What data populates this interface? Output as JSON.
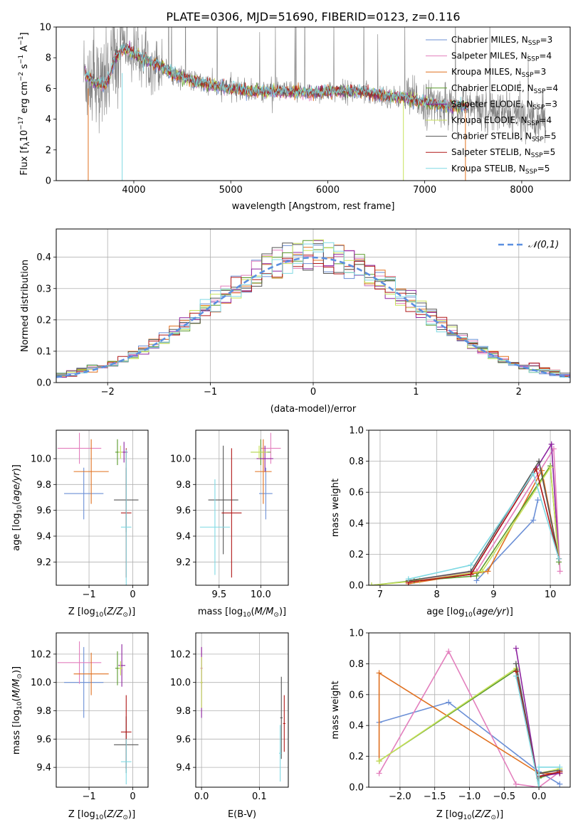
{
  "figure": {
    "title": "PLATE=0306, MJD=51690, FIBERID=0123, z=0.116"
  },
  "colors": {
    "Chabrier MILES": "#6b8fd6",
    "Salpeter MILES": "#e37fbd",
    "Kroupa MILES": "#e0701f",
    "Chabrier ELODIE": "#5a9a2c",
    "Salpeter ELODIE": "#8e24a0",
    "Kroupa ELODIE": "#c8e25a",
    "Chabrier STELIB": "#555555",
    "Salpeter STELIB": "#b01818",
    "Kroupa STELIB": "#7fd9e3",
    "data": "#808080",
    "normal": "#5b8fe0"
  },
  "chart_data": [
    {
      "id": "spectrum",
      "type": "line",
      "xlabel": "wavelength [Angstrom, rest frame]",
      "ylabel": "Flux [fλ10⁻¹⁷ erg cm⁻² s⁻¹ A⁻¹]",
      "xlim": [
        3200,
        8500
      ],
      "ylim": [
        0,
        10
      ],
      "xticks": [
        4000,
        5000,
        6000,
        7000,
        8000
      ],
      "yticks": [
        0,
        2,
        4,
        6,
        8,
        10
      ],
      "legend_position": "top-right",
      "legend": [
        {
          "model": "Chabrier MILES",
          "nssp": "3"
        },
        {
          "model": "Salpeter MILES",
          "nssp": "4"
        },
        {
          "model": "Kroupa MILES",
          "nssp": "3"
        },
        {
          "model": "Chabrier ELODIE",
          "nssp": "4"
        },
        {
          "model": "Salpeter ELODIE",
          "nssp": "3"
        },
        {
          "model": "Kroupa ELODIE",
          "nssp": "4"
        },
        {
          "model": "Chabrier STELIB",
          "nssp": "5"
        },
        {
          "model": "Salpeter STELIB",
          "nssp": "5"
        },
        {
          "model": "Kroupa STELIB",
          "nssp": "5"
        }
      ],
      "continuum": {
        "x": [
          3500,
          3600,
          3700,
          3750,
          3800,
          3850,
          3900,
          4000,
          4100,
          4200,
          4400,
          4600,
          4800,
          5000,
          5200,
          5500,
          5800,
          6000,
          6300,
          6600,
          6800,
          7000,
          7200,
          7400,
          7600,
          7800,
          8000,
          8200
        ],
        "y": [
          6.9,
          6.4,
          6.2,
          6.8,
          7.9,
          8.3,
          8.6,
          8.3,
          7.9,
          7.7,
          7.0,
          6.5,
          6.2,
          6.0,
          5.8,
          5.8,
          5.7,
          5.8,
          5.8,
          5.5,
          5.4,
          5.1,
          4.9,
          4.8,
          4.6,
          4.4,
          4.2,
          4.1
        ]
      },
      "model_range": [
        3500,
        7450
      ]
    },
    {
      "id": "residuals",
      "type": "histogram",
      "xlabel": "(data-model)/error",
      "ylabel": "Normed distribution",
      "xlim": [
        -2.5,
        2.5
      ],
      "ylim": [
        0,
        0.49
      ],
      "xticks": [
        -2,
        -1,
        0,
        1,
        2
      ],
      "yticks": [
        0.0,
        0.1,
        0.2,
        0.3,
        0.4
      ],
      "bin_width": 0.1,
      "legend": "𝒩(0,1)",
      "legend_position": "top-right"
    },
    {
      "id": "age_vs_Z",
      "type": "errorbar",
      "xlabel": "Z [log10(Z/Z☉)]",
      "ylabel": "age  [log10(age/yr)]",
      "xlim": [
        -1.75,
        0.35
      ],
      "ylim": [
        9.02,
        10.22
      ],
      "xticks": [
        -1,
        0
      ],
      "yticks": [
        9.2,
        9.4,
        9.6,
        9.8,
        10.0
      ],
      "points": [
        {
          "model": "Chabrier MILES",
          "x": -1.12,
          "xerr": 0.45,
          "y": 9.73,
          "yerr": 0.2
        },
        {
          "model": "Salpeter MILES",
          "x": -1.22,
          "xerr": 0.5,
          "y": 10.08,
          "yerr": 0.12
        },
        {
          "model": "Kroupa MILES",
          "x": -0.95,
          "xerr": 0.4,
          "y": 9.9,
          "yerr": 0.25
        },
        {
          "model": "Chabrier ELODIE",
          "x": -0.35,
          "xerr": 0.05,
          "y": 10.05,
          "yerr": 0.1
        },
        {
          "model": "Salpeter ELODIE",
          "x": -0.2,
          "xerr": 0.08,
          "y": 10.05,
          "yerr": 0.08
        },
        {
          "model": "Kroupa ELODIE",
          "x": -0.28,
          "xerr": 0.05,
          "y": 10.05,
          "yerr": 0.05
        },
        {
          "model": "Chabrier STELIB",
          "x": -0.15,
          "xerr": 0.28,
          "y": 9.68,
          "yerr": 0.25
        },
        {
          "model": "Salpeter STELIB",
          "x": -0.15,
          "xerr": 0.12,
          "y": 9.58,
          "yerr": 0.5
        },
        {
          "model": "Kroupa STELIB",
          "x": -0.15,
          "xerr": 0.12,
          "y": 9.47,
          "yerr": 0.6
        }
      ]
    },
    {
      "id": "age_vs_mass",
      "type": "errorbar",
      "xlabel": "mass [log10(M/M☉)]",
      "ylabel": "",
      "xlim": [
        9.22,
        10.33
      ],
      "ylim": [
        9.02,
        10.22
      ],
      "xticks": [
        9.5,
        10.0
      ],
      "yticks": [
        9.2,
        9.4,
        9.6,
        9.8,
        10.0
      ],
      "points": [
        {
          "model": "Chabrier MILES",
          "x": 10.06,
          "xerr": 0.08,
          "y": 9.73,
          "yerr": 0.2
        },
        {
          "model": "Salpeter MILES",
          "x": 10.12,
          "xerr": 0.12,
          "y": 10.08,
          "yerr": 0.12
        },
        {
          "model": "Kroupa MILES",
          "x": 10.03,
          "xerr": 0.1,
          "y": 9.9,
          "yerr": 0.25
        },
        {
          "model": "Chabrier ELODIE",
          "x": 10.0,
          "xerr": 0.12,
          "y": 10.05,
          "yerr": 0.1
        },
        {
          "model": "Salpeter ELODIE",
          "x": 10.05,
          "xerr": 0.1,
          "y": 10.0,
          "yerr": 0.1
        },
        {
          "model": "Kroupa ELODIE",
          "x": 9.98,
          "xerr": 0.1,
          "y": 10.05,
          "yerr": 0.05
        },
        {
          "model": "Chabrier STELIB",
          "x": 9.55,
          "xerr": 0.18,
          "y": 9.68,
          "yerr": 0.42
        },
        {
          "model": "Salpeter STELIB",
          "x": 9.65,
          "xerr": 0.12,
          "y": 9.58,
          "yerr": 0.5
        },
        {
          "model": "Kroupa STELIB",
          "x": 9.45,
          "xerr": 0.18,
          "y": 9.47,
          "yerr": 0.37
        }
      ]
    },
    {
      "id": "weight_vs_age",
      "type": "line",
      "xlabel": "age  [log10(age/yr)]",
      "ylabel": "mass weight",
      "xlim": [
        6.8,
        10.35
      ],
      "ylim": [
        0,
        1.0
      ],
      "xticks": [
        7,
        8,
        9,
        10
      ],
      "yticks": [
        0.0,
        0.2,
        0.4,
        0.6,
        0.8,
        1.0
      ],
      "series": [
        {
          "model": "Chabrier MILES",
          "x": [
            8.7,
            9.7,
            9.78
          ],
          "y": [
            0.03,
            0.42,
            0.55
          ]
        },
        {
          "model": "Salpeter MILES",
          "x": [
            7.5,
            8.7,
            10.06,
            10.17
          ],
          "y": [
            0.02,
            0.09,
            0.88,
            0.09
          ]
        },
        {
          "model": "Kroupa MILES",
          "x": [
            7.5,
            8.9,
            9.85,
            10.15
          ],
          "y": [
            0.01,
            0.09,
            0.74,
            0.17
          ]
        },
        {
          "model": "Chabrier ELODIE",
          "x": [
            6.85,
            7.6,
            8.7,
            10.0,
            10.15
          ],
          "y": [
            0.0,
            0.03,
            0.06,
            0.77,
            0.15
          ]
        },
        {
          "model": "Salpeter ELODIE",
          "x": [
            7.5,
            8.6,
            10.02,
            10.15
          ],
          "y": [
            0.02,
            0.07,
            0.91,
            0.17
          ]
        },
        {
          "model": "Kroupa ELODIE",
          "x": [
            6.85,
            7.7,
            8.8,
            10.0,
            10.15
          ],
          "y": [
            0.0,
            0.03,
            0.09,
            0.76,
            0.17
          ]
        },
        {
          "model": "Chabrier STELIB",
          "x": [
            7.5,
            8.6,
            9.8,
            10.15
          ],
          "y": [
            0.03,
            0.09,
            0.8,
            0.17
          ]
        },
        {
          "model": "Salpeter STELIB",
          "x": [
            7.5,
            8.6,
            9.75,
            10.15
          ],
          "y": [
            0.02,
            0.07,
            0.75,
            0.17
          ]
        },
        {
          "model": "Kroupa STELIB",
          "x": [
            7.5,
            8.6,
            9.7,
            10.15
          ],
          "y": [
            0.04,
            0.13,
            0.72,
            0.17
          ]
        }
      ]
    },
    {
      "id": "mass_vs_Z",
      "type": "errorbar",
      "xlabel": "Z [log10(Z/Z☉)]",
      "ylabel": "mass [log10(M/M☉)]",
      "xlim": [
        -1.75,
        0.35
      ],
      "ylim": [
        9.26,
        10.35
      ],
      "xticks": [
        -1,
        0
      ],
      "yticks": [
        9.4,
        9.6,
        9.8,
        10.0,
        10.2
      ],
      "points": [
        {
          "model": "Chabrier MILES",
          "x": -1.12,
          "xerr": 0.45,
          "y": 10.0,
          "yerr": 0.25
        },
        {
          "model": "Salpeter MILES",
          "x": -1.22,
          "xerr": 0.5,
          "y": 10.14,
          "yerr": 0.15
        },
        {
          "model": "Kroupa MILES",
          "x": -0.95,
          "xerr": 0.4,
          "y": 10.06,
          "yerr": 0.15
        },
        {
          "model": "Chabrier ELODIE",
          "x": -0.35,
          "xerr": 0.05,
          "y": 10.1,
          "yerr": 0.12
        },
        {
          "model": "Salpeter ELODIE",
          "x": -0.25,
          "xerr": 0.08,
          "y": 10.12,
          "yerr": 0.15
        },
        {
          "model": "Kroupa ELODIE",
          "x": -0.28,
          "xerr": 0.05,
          "y": 10.1,
          "yerr": 0.05
        },
        {
          "model": "Chabrier STELIB",
          "x": -0.15,
          "xerr": 0.28,
          "y": 9.56,
          "yerr": 0.2
        },
        {
          "model": "Salpeter STELIB",
          "x": -0.15,
          "xerr": 0.12,
          "y": 9.65,
          "yerr": 0.26
        },
        {
          "model": "Kroupa STELIB",
          "x": -0.15,
          "xerr": 0.12,
          "y": 9.44,
          "yerr": 0.16
        }
      ]
    },
    {
      "id": "mass_vs_ebv",
      "type": "errorbar",
      "xlabel": "E(B-V)",
      "ylabel": "",
      "xlim": [
        -0.01,
        0.15
      ],
      "ylim": [
        9.26,
        10.35
      ],
      "xticks": [
        0.0,
        0.1
      ],
      "yticks": [
        9.4,
        9.6,
        9.8,
        10.0,
        10.2
      ],
      "points": [
        {
          "model": "Salpeter MILES",
          "x": 0.0,
          "xerr": 0.002,
          "y": 10.1,
          "yerr": 0.15
        },
        {
          "model": "Salpeter ELODIE",
          "x": 0.0,
          "xerr": 0.002,
          "y": 10.0,
          "yerr": 0.25
        },
        {
          "model": "Kroupa ELODIE",
          "x": 0.0,
          "xerr": 0.002,
          "y": 10.0,
          "yerr": 0.18
        },
        {
          "model": "Chabrier STELIB",
          "x": 0.138,
          "xerr": 0.002,
          "y": 9.75,
          "yerr": 0.29
        },
        {
          "model": "Salpeter STELIB",
          "x": 0.143,
          "xerr": 0.002,
          "y": 9.71,
          "yerr": 0.2
        },
        {
          "model": "Kroupa STELIB",
          "x": 0.136,
          "xerr": 0.002,
          "y": 9.5,
          "yerr": 0.2
        }
      ]
    },
    {
      "id": "weight_vs_Z",
      "type": "line",
      "xlabel": "Z [log10(Z/Z☉)]",
      "ylabel": "mass weight",
      "xlim": [
        -2.45,
        0.45
      ],
      "ylim": [
        0,
        1.0
      ],
      "xticks": [
        -2.0,
        -1.5,
        -1.0,
        -0.5,
        0.0
      ],
      "yticks": [
        0.0,
        0.2,
        0.4,
        0.6,
        0.8,
        1.0
      ],
      "series": [
        {
          "model": "Chabrier MILES",
          "x": [
            -2.3,
            -1.3,
            0.0,
            0.3
          ],
          "y": [
            0.42,
            0.55,
            0.1,
            0.02
          ]
        },
        {
          "model": "Salpeter MILES",
          "x": [
            -2.3,
            -1.3,
            -0.33,
            0.0,
            0.3
          ],
          "y": [
            0.09,
            0.88,
            0.02,
            0.0,
            0.1
          ]
        },
        {
          "model": "Kroupa MILES",
          "x": [
            -2.3,
            -2.3,
            0.0,
            0.3
          ],
          "y": [
            0.17,
            0.74,
            0.09,
            0.09
          ]
        },
        {
          "model": "Chabrier ELODIE",
          "x": [
            -2.3,
            -0.33,
            0.0,
            0.0,
            0.3
          ],
          "y": [
            0.17,
            0.76,
            0.0,
            0.06,
            0.1
          ]
        },
        {
          "model": "Salpeter ELODIE",
          "x": [
            -0.33,
            0.0,
            0.0,
            0.3
          ],
          "y": [
            0.9,
            0.0,
            0.07,
            0.09
          ]
        },
        {
          "model": "Kroupa ELODIE",
          "x": [
            -2.3,
            -0.33,
            0.0,
            0.0,
            0.3
          ],
          "y": [
            0.17,
            0.77,
            0.0,
            0.09,
            0.12
          ]
        },
        {
          "model": "Chabrier STELIB",
          "x": [
            -0.33,
            0.0,
            0.0,
            0.3
          ],
          "y": [
            0.8,
            0.0,
            0.09,
            0.11
          ]
        },
        {
          "model": "Salpeter STELIB",
          "x": [
            -0.33,
            0.0,
            0.0,
            0.3
          ],
          "y": [
            0.75,
            0.0,
            0.07,
            0.1
          ]
        },
        {
          "model": "Kroupa STELIB",
          "x": [
            -0.33,
            0.0,
            0.0,
            0.3
          ],
          "y": [
            0.72,
            0.0,
            0.13,
            0.13
          ]
        }
      ]
    }
  ]
}
